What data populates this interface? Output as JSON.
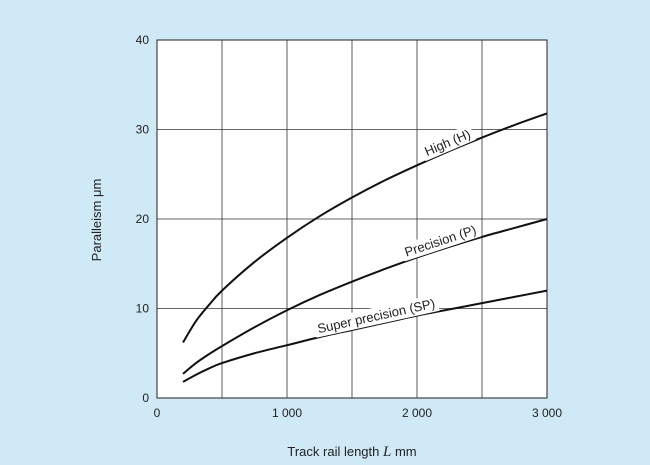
{
  "chart_data": {
    "type": "line",
    "xlabel": "Track rail length L mm",
    "xlabel_parts": {
      "prefix": "Track rail length ",
      "var": "L",
      "suffix": " mm"
    },
    "ylabel": "Paralleism μm",
    "xlim": [
      0,
      3000
    ],
    "ylim": [
      0,
      40
    ],
    "x_ticks": [
      0,
      1000,
      2000,
      3000
    ],
    "x_tick_labels": [
      "0",
      "1 000",
      "2 000",
      "3 000"
    ],
    "y_ticks": [
      0,
      10,
      20,
      30,
      40
    ],
    "y_tick_labels": [
      "0",
      "10",
      "20",
      "30",
      "40"
    ],
    "grid": true,
    "x_grid": [
      500,
      1000,
      1500,
      2000,
      2500
    ],
    "y_grid": [
      10,
      20,
      30
    ],
    "background": "#cfe9f7",
    "plot_background": "#ffffff",
    "series": [
      {
        "name": "High (H)",
        "x": [
          200,
          300,
          400,
          500,
          750,
          1000,
          1250,
          1500,
          1750,
          2000,
          2250,
          2500,
          2750,
          3000
        ],
        "values": [
          6.2,
          8.6,
          10.4,
          12.0,
          15.2,
          17.9,
          20.3,
          22.4,
          24.3,
          26.0,
          27.6,
          29.1,
          30.5,
          31.8
        ],
        "label_at_x": 2260
      },
      {
        "name": "Precision (P)",
        "x": [
          200,
          300,
          400,
          500,
          750,
          1000,
          1250,
          1500,
          1750,
          2000,
          2250,
          2500,
          2750,
          3000
        ],
        "values": [
          2.7,
          3.9,
          4.9,
          5.8,
          7.9,
          9.8,
          11.5,
          13.0,
          14.4,
          15.7,
          16.9,
          18.0,
          19.0,
          20.0
        ],
        "label_at_x": 2200
      },
      {
        "name": "Super precision (SP)",
        "x": [
          200,
          300,
          400,
          500,
          750,
          1000,
          1250,
          1500,
          1750,
          2000,
          2250,
          2500,
          2750,
          3000
        ],
        "values": [
          1.8,
          2.6,
          3.3,
          3.9,
          5.0,
          5.9,
          6.8,
          7.6,
          8.4,
          9.2,
          9.9,
          10.6,
          11.3,
          12.0
        ],
        "label_at_x": 1700
      }
    ]
  }
}
